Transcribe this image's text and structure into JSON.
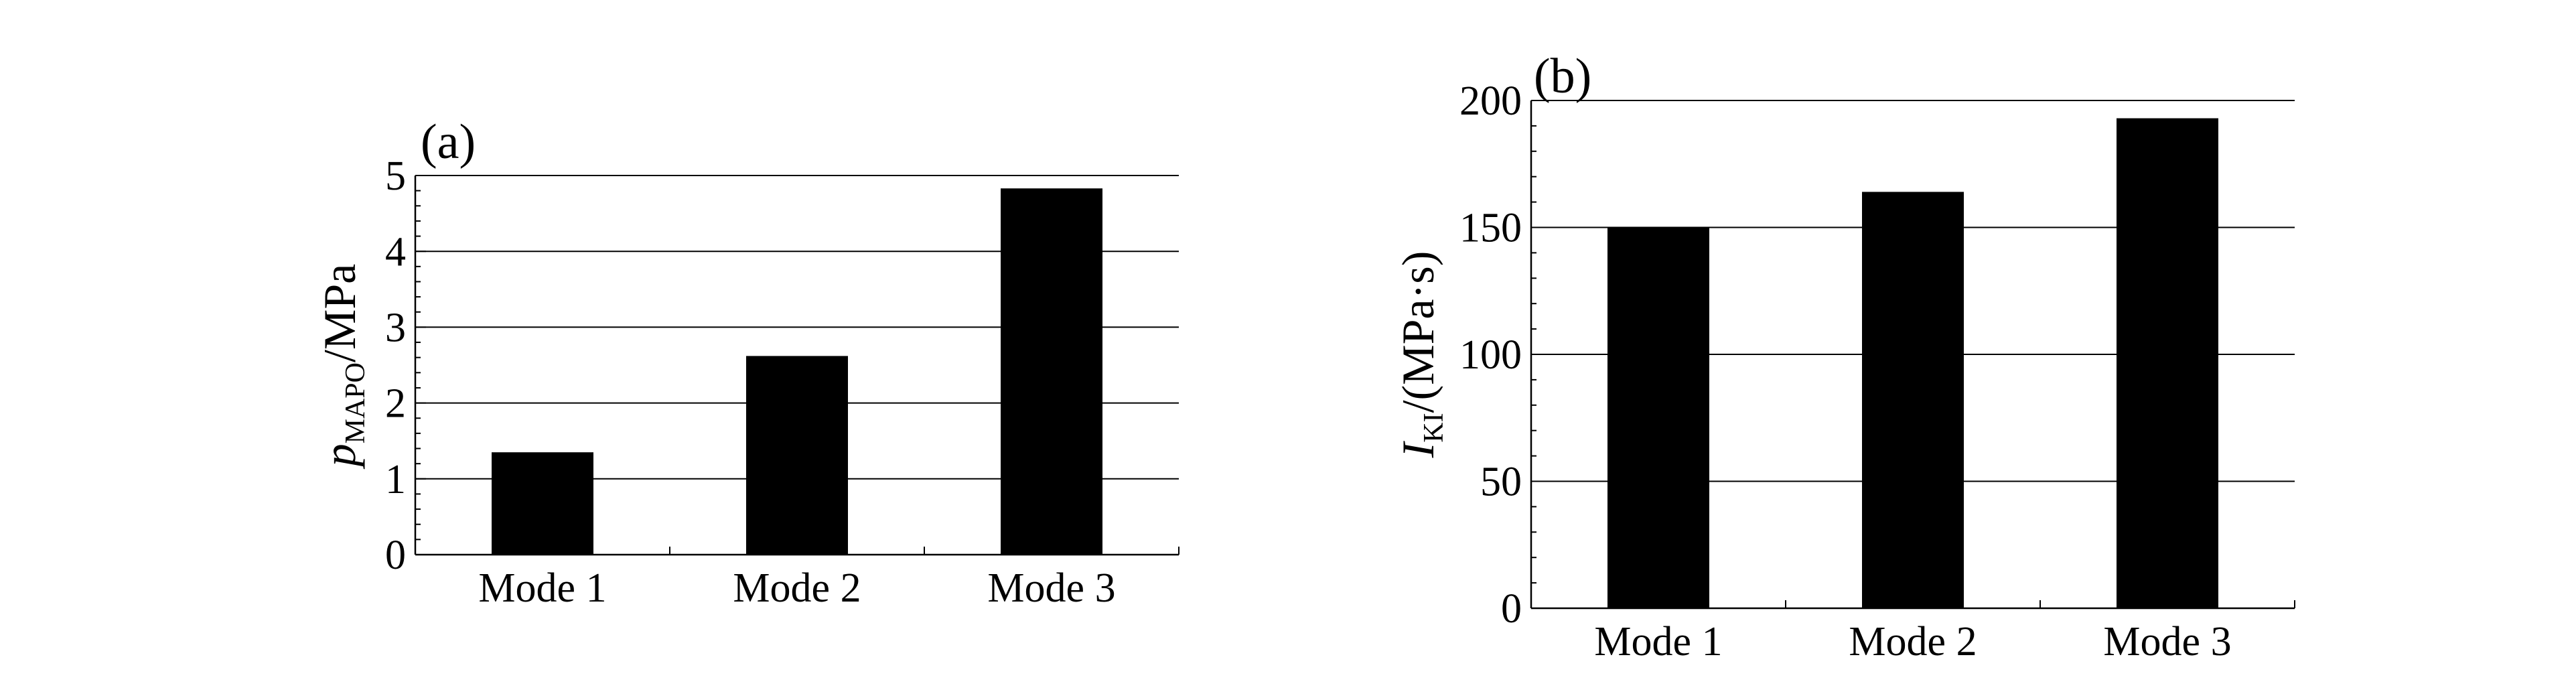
{
  "chart_data": [
    {
      "type": "bar",
      "panel_label": "(a)",
      "ylabel_main": "p",
      "ylabel_sub": "MAPO",
      "ylabel_unit": "/MPa",
      "xlabel": "",
      "categories": [
        "Mode 1",
        "Mode 2",
        "Mode 3"
      ],
      "values": [
        1.35,
        2.62,
        4.83
      ],
      "ylim": [
        0,
        5
      ],
      "yticks": [
        0,
        1,
        2,
        3,
        4,
        5
      ],
      "minor_ticks_per_major": 5,
      "grid": "horizontal major",
      "bar_color": "#000000"
    },
    {
      "type": "bar",
      "panel_label": "(b)",
      "ylabel_main": "I",
      "ylabel_sub": "KI",
      "ylabel_unit": "/(MPa·s)",
      "xlabel": "",
      "categories": [
        "Mode 1",
        "Mode 2",
        "Mode 3"
      ],
      "values": [
        150,
        164,
        193
      ],
      "ylim": [
        0,
        200
      ],
      "yticks": [
        0,
        50,
        100,
        150,
        200
      ],
      "minor_ticks_per_major": 5,
      "grid": "horizontal major",
      "bar_color": "#000000"
    }
  ]
}
